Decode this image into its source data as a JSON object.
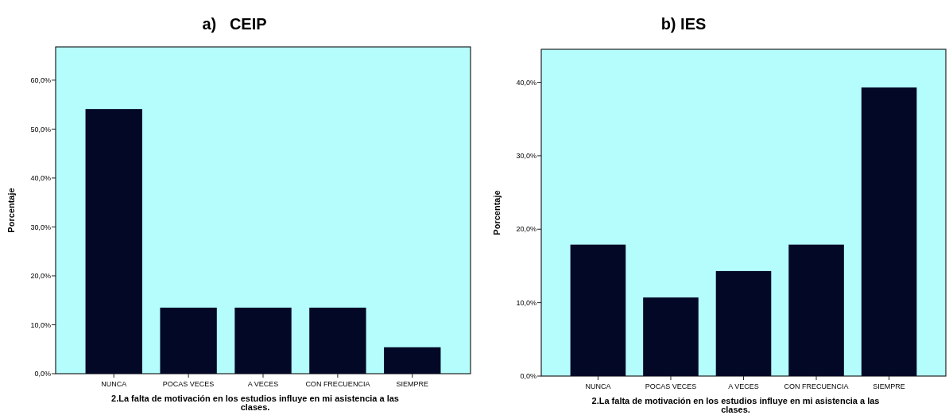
{
  "chart_data": [
    {
      "type": "bar",
      "title": "a)   CEIP",
      "xlabel": "2.La falta de motivación en los estudios influye en mi asistencia a las clases.",
      "ylabel": "Porcentaje",
      "categories": [
        "NUNCA",
        "POCAS VECES",
        "A VECES",
        "CON FRECUENCIA",
        "SIEMPRE"
      ],
      "values": [
        54.1,
        13.5,
        13.5,
        13.5,
        5.4
      ],
      "color": "#020826",
      "ylim": [
        0,
        66.8
      ],
      "yticks": [
        {
          "value": 0,
          "label": "0,0%"
        },
        {
          "value": 10,
          "label": "10,0%"
        },
        {
          "value": 20,
          "label": "20,0%"
        },
        {
          "value": 30,
          "label": "30,0%"
        },
        {
          "value": 40,
          "label": "40,0%"
        },
        {
          "value": 50,
          "label": "50,0%"
        },
        {
          "value": 60,
          "label": "60,0%"
        }
      ],
      "grid": false
    },
    {
      "type": "bar",
      "title": "b) IES",
      "xlabel": "2.La falta de motivación en los estudios influye en mi asistencia a las clases.",
      "ylabel": "Porcentaje",
      "categories": [
        "NUNCA",
        "POCAS VECES",
        "A VECES",
        "CON FRECUENCIA",
        "SIEMPRE"
      ],
      "values": [
        17.9,
        10.7,
        14.3,
        17.9,
        39.3
      ],
      "color": "#020826",
      "ylim": [
        0,
        44.5
      ],
      "yticks": [
        {
          "value": 0,
          "label": "0,0%"
        },
        {
          "value": 10,
          "label": "10,0%"
        },
        {
          "value": 20,
          "label": "20,0%"
        },
        {
          "value": 30,
          "label": "30,0%"
        },
        {
          "value": 40,
          "label": "40,0%"
        }
      ],
      "grid": false
    }
  ]
}
